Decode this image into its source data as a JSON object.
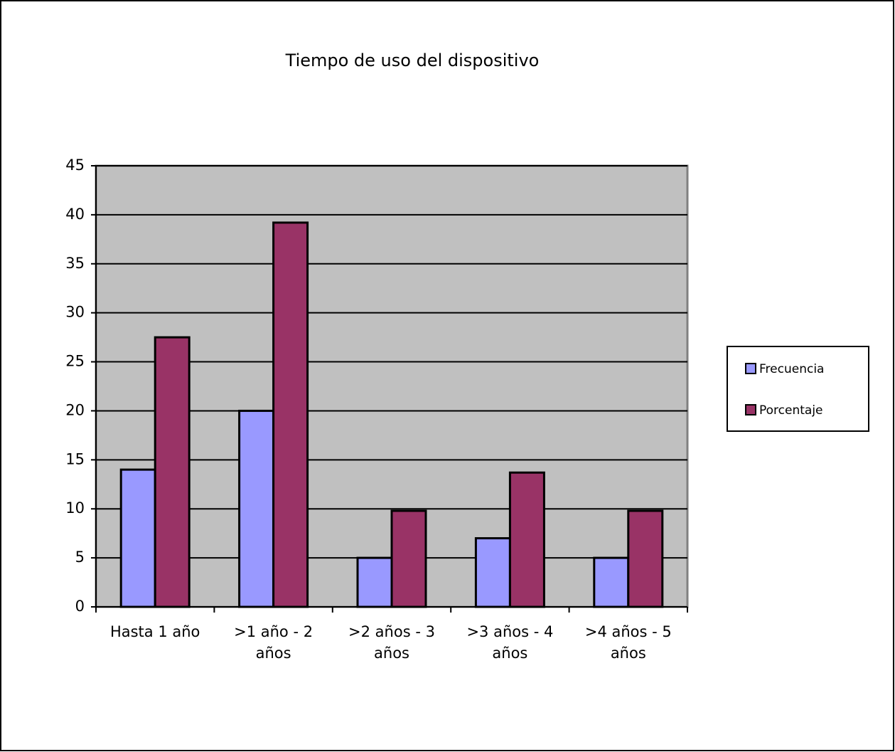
{
  "chart_data": {
    "type": "bar",
    "title": "Tiempo de uso del dispositivo",
    "categories": [
      "Hasta 1 año",
      ">1 año - 2 años",
      ">2 años - 3 años",
      ">3 años - 4 años",
      ">4 años - 5 años"
    ],
    "series": [
      {
        "name": "Frecuencia",
        "color": "#9999ff",
        "values": [
          14,
          20,
          5,
          7,
          5
        ]
      },
      {
        "name": "Porcentaje",
        "color": "#993366",
        "values": [
          27.5,
          39.2,
          9.8,
          13.7,
          9.8
        ]
      }
    ],
    "ylim": [
      0,
      45
    ],
    "yticks": [
      0,
      5,
      10,
      15,
      20,
      25,
      30,
      35,
      40,
      45
    ],
    "grid": true,
    "legend": "right"
  }
}
